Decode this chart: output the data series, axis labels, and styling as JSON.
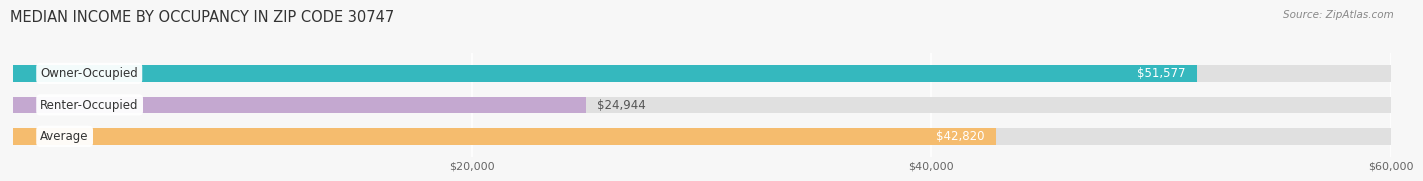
{
  "title": "MEDIAN INCOME BY OCCUPANCY IN ZIP CODE 30747",
  "source": "Source: ZipAtlas.com",
  "categories": [
    "Owner-Occupied",
    "Renter-Occupied",
    "Average"
  ],
  "values": [
    51577,
    24944,
    42820
  ],
  "labels": [
    "$51,577",
    "$24,944",
    "$42,820"
  ],
  "bar_colors": [
    "#35b8be",
    "#c4a8d0",
    "#f5bc6e"
  ],
  "bg_bar_color": "#e0e0e0",
  "xlim": [
    0,
    60000
  ],
  "xmax": 60000,
  "xticks": [
    20000,
    40000,
    60000
  ],
  "xticklabels": [
    "$20,000",
    "$40,000",
    "$60,000"
  ],
  "background_color": "#f7f7f7",
  "title_fontsize": 10.5,
  "label_fontsize": 8.5,
  "tick_fontsize": 8,
  "source_fontsize": 7.5,
  "bar_height": 0.52,
  "label_value_dark": "#555555",
  "label_value_white": "#ffffff"
}
